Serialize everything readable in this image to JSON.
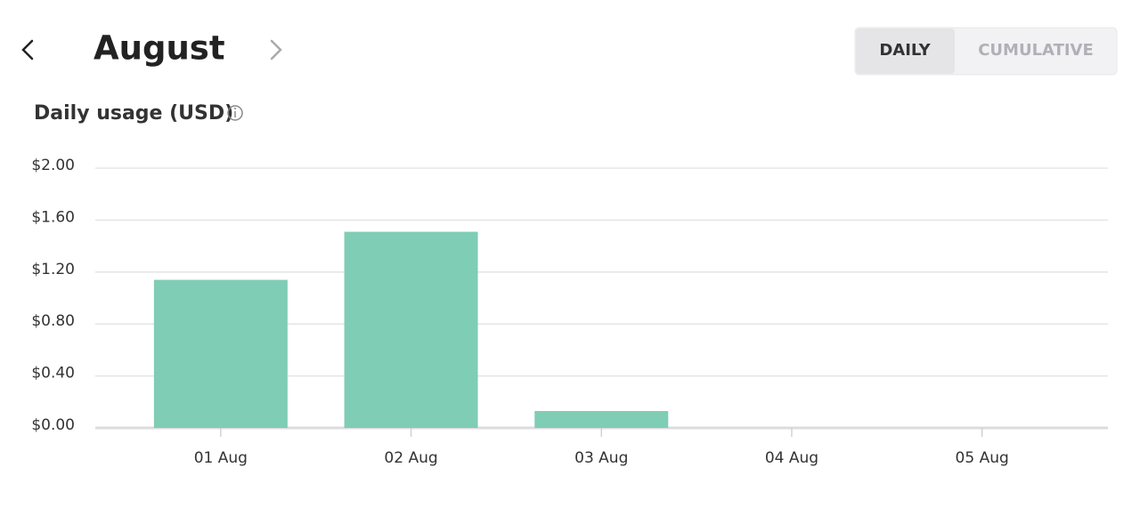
{
  "header": {
    "month": "August"
  },
  "toggle": {
    "options": [
      "DAILY",
      "CUMULATIVE"
    ]
  },
  "chart_data": {
    "type": "bar",
    "title": "Daily usage (USD)",
    "categories": [
      "01 Aug",
      "02 Aug",
      "03 Aug",
      "04 Aug",
      "05 Aug"
    ],
    "values": [
      1.14,
      1.51,
      0.13,
      0,
      0
    ],
    "color": "#7fcdb5",
    "ylim": [
      0,
      2
    ],
    "yticks": [
      {
        "value": 0,
        "label": "$0.00"
      },
      {
        "value": 0.4,
        "label": "$0.40"
      },
      {
        "value": 0.8,
        "label": "$0.80"
      },
      {
        "value": 1.2,
        "label": "$1.20"
      },
      {
        "value": 1.6,
        "label": "$1.60"
      },
      {
        "value": 2,
        "label": "$2.00"
      }
    ],
    "grid": true
  }
}
